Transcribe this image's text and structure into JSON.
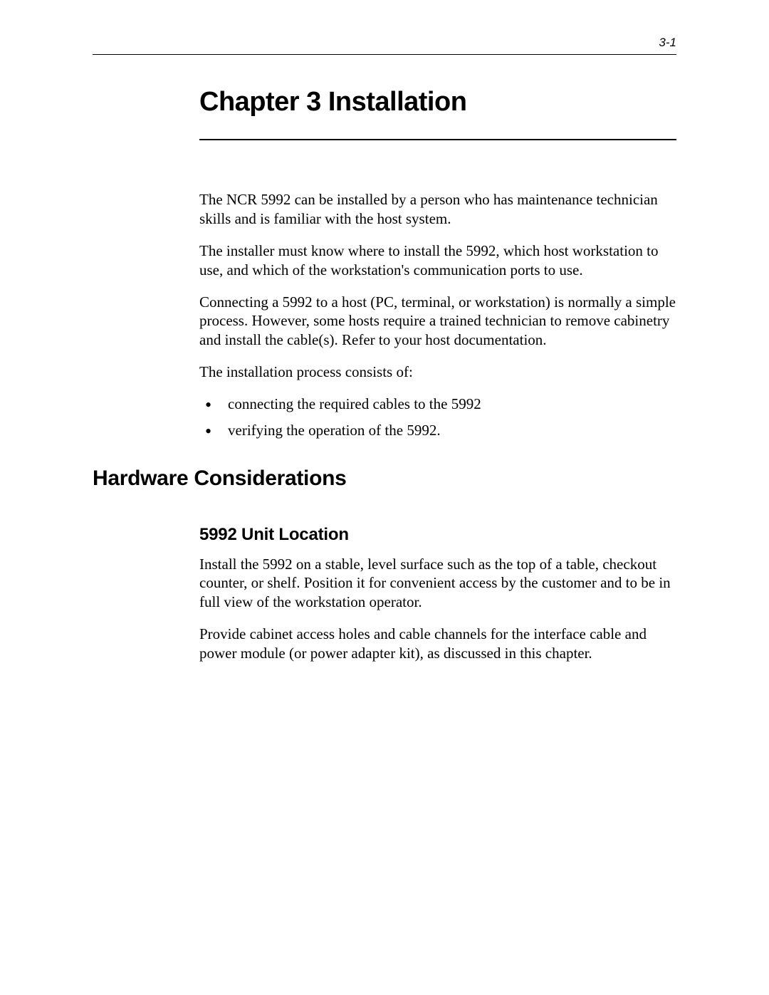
{
  "page_number": "3-1",
  "chapter_title": "Chapter 3 Installation",
  "intro": {
    "p1": "The NCR 5992 can be installed by a person who has maintenance technician skills and is familiar with the host system.",
    "p2": "The installer must know where to install the 5992, which host workstation to use, and which of the workstation's communication ports to use.",
    "p3": "Connecting a 5992 to a host (PC, terminal, or workstation) is normally a simple process. However, some hosts require a trained technician to remove cabinetry and install the cable(s). Refer to your host documentation.",
    "p4": "The installation process consists of:",
    "bullets": {
      "b1": "connecting the required cables to the 5992",
      "b2": "verifying the operation of the 5992."
    }
  },
  "section1": {
    "heading": "Hardware Considerations",
    "sub1": {
      "heading": "5992 Unit Location",
      "p1": "Install the 5992 on a stable, level surface such as the top of a table, checkout counter, or shelf. Position it for convenient access by the customer and to be in full view of the workstation operator.",
      "p2": "Provide cabinet access holes and cable channels for the interface cable and power module (or power adapter kit), as discussed in this chapter."
    }
  },
  "colors": {
    "text": "#000000",
    "background": "#ffffff",
    "rule": "#000000"
  },
  "fonts": {
    "heading_family": "Arial, Helvetica, sans-serif",
    "body_family": "Palatino Linotype, Book Antiqua, Palatino, serif",
    "chapter_title_size": 38,
    "section_heading_size": 30,
    "subsection_heading_size": 24,
    "body_size": 21,
    "page_number_size": 17
  }
}
